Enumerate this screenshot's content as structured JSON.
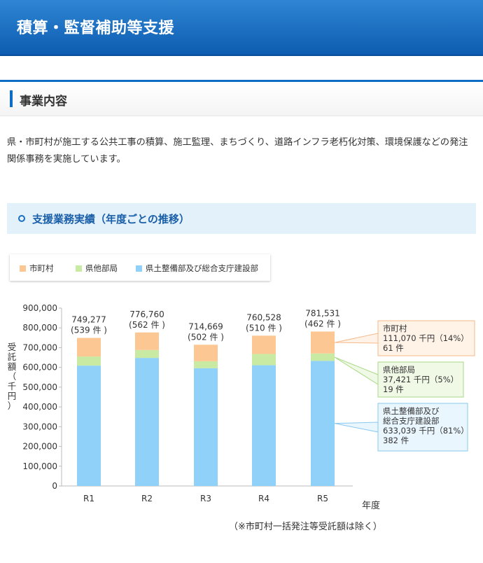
{
  "header": {
    "title": "積算・監督補助等支援"
  },
  "section": {
    "title": "事業内容"
  },
  "description": "県・市町村が施工する公共工事の積算、施工監理、まちづくり、道路インフラ老朽化対策、環境保護などの発注関係事務を実施しています。",
  "subsection": {
    "title": "支援業務実績（年度ごとの推移）"
  },
  "legend": {
    "items": [
      {
        "label": "市町村",
        "color": "#fcc793"
      },
      {
        "label": "県他部局",
        "color": "#c8eaa2"
      },
      {
        "label": "県土整備部及び総合支庁建設部",
        "color": "#8fd1f8"
      }
    ]
  },
  "chart_data": {
    "type": "bar",
    "stacked": true,
    "categories": [
      "R1",
      "R2",
      "R3",
      "R4",
      "R5"
    ],
    "series": [
      {
        "name": "県土整備部及び総合支庁建設部",
        "color": "#8fd1f8",
        "values": [
          609000,
          648000,
          596000,
          611000,
          633039
        ]
      },
      {
        "name": "県他部局",
        "color": "#c8eaa2",
        "values": [
          46000,
          40000,
          35000,
          57000,
          37421
        ]
      },
      {
        "name": "市町村",
        "color": "#fcc793",
        "values": [
          94277,
          88760,
          83669,
          92528,
          111070
        ]
      }
    ],
    "totals": [
      "749,277",
      "776,760",
      "714,669",
      "760,528",
      "781,531"
    ],
    "counts": [
      "(539 件 )",
      "(562 件 )",
      "(502 件 )",
      "(510 件 )",
      "(462 件 )"
    ],
    "yticks": [
      "0",
      "100,000",
      "200,000",
      "300,000",
      "400,000",
      "500,000",
      "600,000",
      "700,000",
      "800,000",
      "900,000"
    ],
    "ylim": [
      0,
      900000
    ],
    "ylabel": "受託額（千円）",
    "xlabel": "年度",
    "grid": false,
    "callouts": [
      {
        "series": "市町村",
        "lines": [
          "市町村",
          "111,070 千円（14%）",
          "61 件"
        ],
        "bg": "#fff3e8",
        "border": "#f5b98a"
      },
      {
        "series": "県他部局",
        "lines": [
          "県他部局",
          "37,421 千円（5%）",
          "19 件"
        ],
        "bg": "#f0f8e6",
        "border": "#a9d985"
      },
      {
        "series": "県土整備部及び総合支庁建設部",
        "lines": [
          "県土整備部及び",
          "総合支庁建設部",
          "633,039 千円（81%）",
          "382 件"
        ],
        "bg": "#e9f6fe",
        "border": "#86c8ee"
      }
    ]
  },
  "note": "（※市町村一括発注等受託額は除く）"
}
